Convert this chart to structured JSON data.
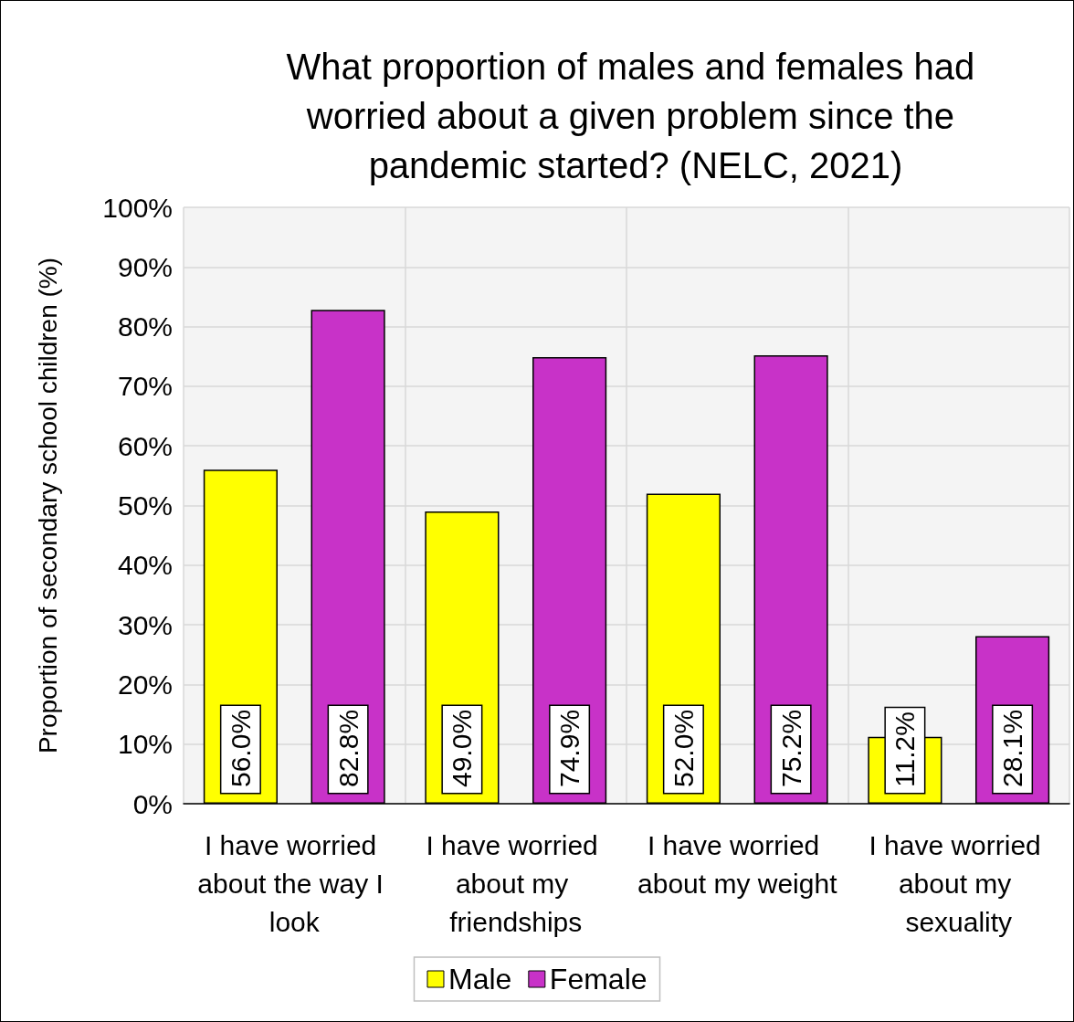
{
  "chart_data": {
    "type": "bar",
    "title": "What proportion of males and females had worried about a given problem since the pandemic started? (NELC, 2021)",
    "ylabel": "Proportion of secondary school children (%)",
    "categories": [
      "I have worried about the way I look",
      "I have worried about my friendships",
      "I have worried about my weight",
      "I have worried about my sexuality"
    ],
    "series": [
      {
        "name": "Male",
        "color": "#ffff00",
        "values": [
          56.0,
          49.0,
          52.0,
          11.2
        ],
        "value_labels": [
          "56.0%",
          "49.0%",
          "52.0%",
          "11.2%"
        ]
      },
      {
        "name": "Female",
        "color": "#c832c8",
        "values": [
          82.8,
          74.9,
          75.2,
          28.1
        ],
        "value_labels": [
          "82.8%",
          "74.9%",
          "75.2%",
          "28.1%"
        ]
      }
    ],
    "ylim": [
      0,
      100
    ],
    "yticks": [
      {
        "value": 0,
        "label": "0%"
      },
      {
        "value": 10,
        "label": "10%"
      },
      {
        "value": 20,
        "label": "20%"
      },
      {
        "value": 30,
        "label": "30%"
      },
      {
        "value": 40,
        "label": "40%"
      },
      {
        "value": 50,
        "label": "50%"
      },
      {
        "value": 60,
        "label": "60%"
      },
      {
        "value": 70,
        "label": "70%"
      },
      {
        "value": 80,
        "label": "80%"
      },
      {
        "value": 90,
        "label": "90%"
      },
      {
        "value": 100,
        "label": "100%"
      }
    ],
    "grid": true,
    "legend": "bottom"
  }
}
